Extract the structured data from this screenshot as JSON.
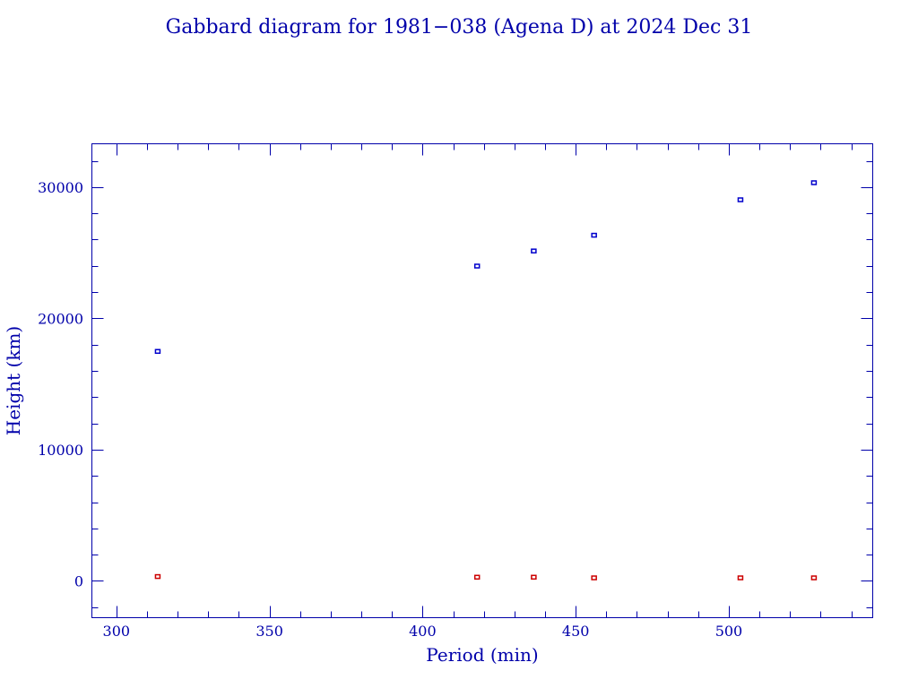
{
  "chart_data": {
    "type": "scatter",
    "title": "Gabbard diagram for 1981−038 (Agena D) at 2024 Dec 31",
    "xlabel": "Period (min)",
    "ylabel": "Height (km)",
    "xlim": [
      292,
      547
    ],
    "ylim": [
      -2800,
      33300
    ],
    "x_major_ticks": [
      300,
      350,
      400,
      450,
      500
    ],
    "x_minor_step": 10,
    "y_major_ticks": [
      0,
      10000,
      20000,
      30000
    ],
    "y_minor_step": 2000,
    "grid": false,
    "legend": "none",
    "axis_color": "#0000aa",
    "series": [
      {
        "color": "#0000cc",
        "x": [
          313.5,
          417.8,
          436.3,
          456.0,
          503.8,
          527.8
        ],
        "y": [
          17450,
          23950,
          25100,
          26300,
          29000,
          30300
        ]
      },
      {
        "color": "#cc0000",
        "x": [
          313.5,
          417.8,
          436.3,
          456.0,
          503.8,
          527.8
        ],
        "y": [
          300,
          250,
          250,
          200,
          200,
          200
        ]
      }
    ]
  }
}
